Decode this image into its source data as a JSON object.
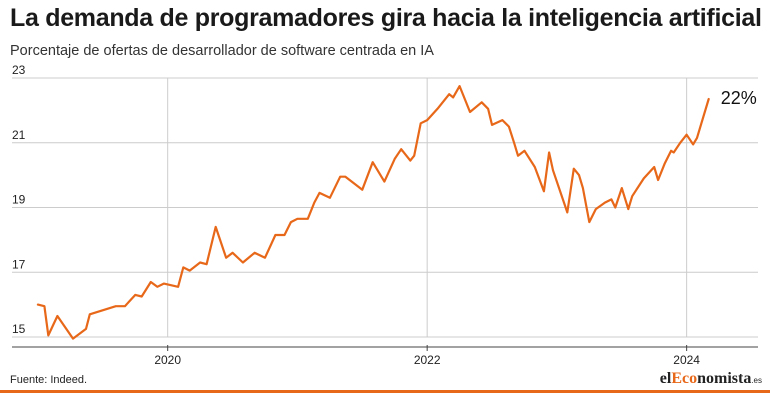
{
  "title": "La demanda de programadores gira hacia la inteligencia artificial",
  "subtitle": "Porcentaje de ofertas de desarrollador de software centrada en IA",
  "source": "Fuente: Indeed.",
  "logo": {
    "prefix": "el",
    "accent": "Eco",
    "suffix": "nomista",
    "tld": ".es"
  },
  "colors": {
    "line": "#e8681a",
    "grid": "#cccccc",
    "accent": "#e8681a"
  },
  "chart_data": {
    "type": "line",
    "title": "",
    "xlabel": "",
    "ylabel": "",
    "ylim": [
      15,
      23
    ],
    "xlim": [
      2018.8,
      2024.55
    ],
    "y_ticks": [
      15,
      17,
      19,
      21,
      23
    ],
    "x_ticks": [
      2020,
      2022,
      2024
    ],
    "grid": {
      "horizontal": true,
      "vertical": true
    },
    "end_label": "22%",
    "series": [
      {
        "x": [
          2019.0,
          2019.05,
          2019.08,
          2019.15,
          2019.27,
          2019.37,
          2019.4,
          2019.6,
          2019.67,
          2019.75,
          2019.8,
          2019.87,
          2019.92,
          2019.97,
          2020.08,
          2020.12,
          2020.17,
          2020.25,
          2020.3,
          2020.37,
          2020.45,
          2020.5,
          2020.58,
          2020.67,
          2020.75,
          2020.83,
          2020.9,
          2020.95,
          2021.0,
          2021.08,
          2021.13,
          2021.17,
          2021.25,
          2021.33,
          2021.37,
          2021.5,
          2021.58,
          2021.67,
          2021.75,
          2021.8,
          2021.87,
          2021.9,
          2021.95,
          2022.0,
          2022.08,
          2022.17,
          2022.2,
          2022.25,
          2022.33,
          2022.42,
          2022.47,
          2022.5,
          2022.58,
          2022.63,
          2022.67,
          2022.7,
          2022.75,
          2022.83,
          2022.9,
          2022.94,
          2022.97,
          2023.08,
          2023.13,
          2023.17,
          2023.2,
          2023.25,
          2023.3,
          2023.37,
          2023.42,
          2023.45,
          2023.5,
          2023.55,
          2023.58,
          2023.67,
          2023.75,
          2023.78,
          2023.83,
          2023.88,
          2023.9,
          2023.95,
          2024.0,
          2024.05,
          2024.08,
          2024.17
        ],
        "y": [
          16.0,
          15.95,
          15.05,
          15.65,
          14.95,
          15.25,
          15.7,
          15.95,
          15.95,
          16.3,
          16.25,
          16.7,
          16.55,
          16.65,
          16.55,
          17.15,
          17.05,
          17.3,
          17.25,
          18.4,
          17.45,
          17.6,
          17.3,
          17.6,
          17.45,
          18.15,
          18.15,
          18.55,
          18.65,
          18.65,
          19.15,
          19.45,
          19.3,
          19.95,
          19.95,
          19.55,
          20.4,
          19.8,
          20.5,
          20.8,
          20.45,
          20.6,
          21.6,
          21.7,
          22.05,
          22.5,
          22.4,
          22.75,
          21.95,
          22.25,
          22.05,
          21.55,
          21.7,
          21.5,
          21.0,
          20.6,
          20.75,
          20.25,
          19.5,
          20.7,
          20.15,
          18.85,
          20.2,
          20.0,
          19.6,
          18.55,
          18.95,
          19.15,
          19.25,
          19.0,
          19.6,
          18.95,
          19.35,
          19.9,
          20.25,
          19.85,
          20.35,
          20.75,
          20.7,
          21.0,
          21.25,
          20.95,
          21.15,
          22.35
        ]
      }
    ]
  }
}
